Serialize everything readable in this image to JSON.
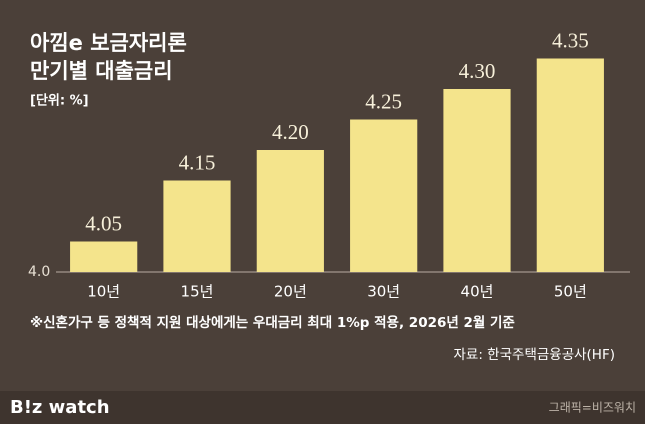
{
  "chart_data": {
    "type": "bar",
    "title": [
      "아낌e 보금자리론",
      "만기별 대출금리"
    ],
    "unit_label": "[단위: %]",
    "categories": [
      "10년",
      "15년",
      "20년",
      "30년",
      "40년",
      "50년"
    ],
    "values": [
      4.05,
      4.15,
      4.2,
      4.25,
      4.3,
      4.35
    ],
    "value_labels": [
      "4.05",
      "4.15",
      "4.20",
      "4.25",
      "4.30",
      "4.35"
    ],
    "color": "#f4e48c",
    "ylim": [
      4.0,
      4.4
    ],
    "yticks": [
      {
        "value": 4.0,
        "label": "4.0"
      }
    ],
    "grid": false,
    "note": "※신혼가구 등 정책적 지원 대상에게는 우대금리 최대 1%p 적용, 2026년 2월 기준",
    "source": "자료: 한국주택금융공사(HF)",
    "logo": "B!z watch",
    "credit": "그래픽=비즈워치"
  }
}
